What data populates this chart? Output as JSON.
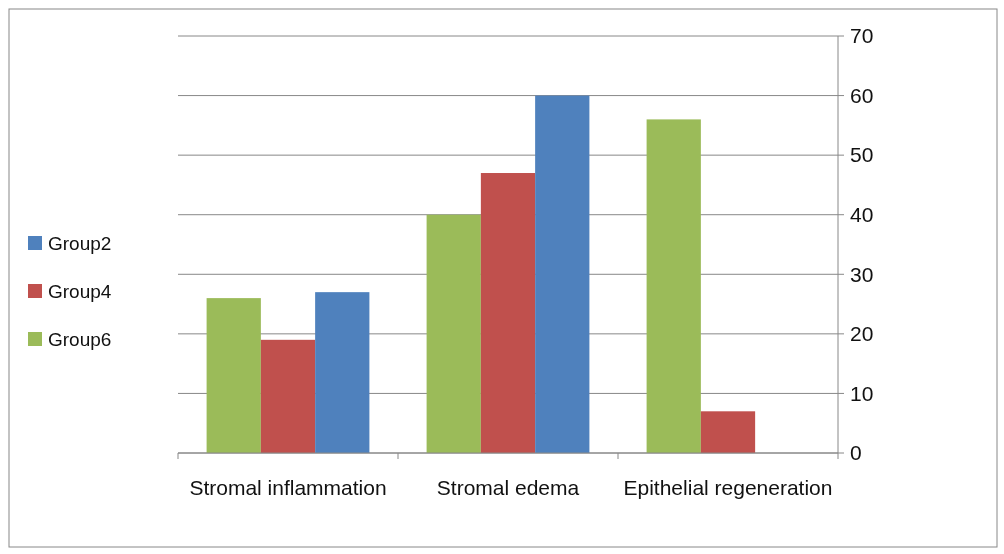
{
  "chart_data": {
    "type": "bar",
    "categories": [
      "Stromal inflammation",
      "Stromal edema",
      "Epithelial regeneration"
    ],
    "series": [
      {
        "name": "Group6",
        "color": "#9bbb59",
        "values": [
          26,
          40,
          56
        ]
      },
      {
        "name": "Group4",
        "color": "#c0504d",
        "values": [
          19,
          47,
          7
        ]
      },
      {
        "name": "Group2",
        "color": "#4f81bd",
        "values": [
          27,
          60,
          0
        ]
      }
    ],
    "ylim": [
      0,
      70
    ],
    "yticks": [
      0,
      10,
      20,
      30,
      40,
      50,
      60,
      70
    ],
    "grid": "y",
    "legend": "left"
  }
}
